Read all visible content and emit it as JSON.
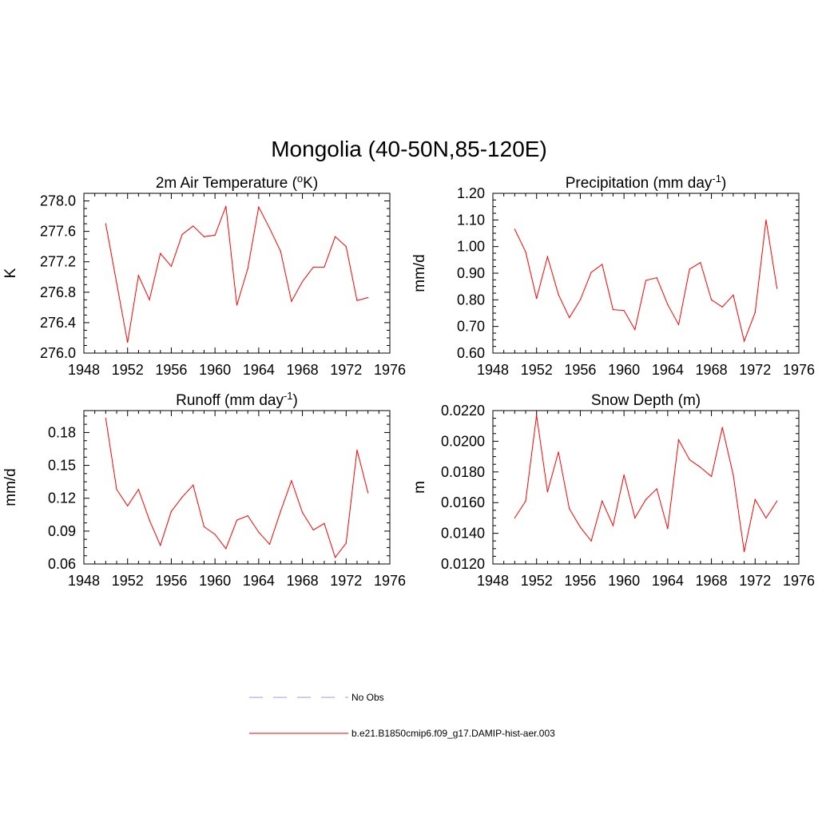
{
  "figure": {
    "title": "Mongolia (40-50N,85-120E)"
  },
  "colors": {
    "model": "#ff0000",
    "obs": "#9999ee",
    "axis": "#000000"
  },
  "legend": {
    "entries": [
      {
        "label": "No Obs",
        "style": "dashed",
        "color": "#9999ee"
      },
      {
        "label": "b.e21.B1850cmip6.f09_g17.DAMIP-hist-aer.003",
        "style": "solid",
        "color": "#ff0000"
      }
    ]
  },
  "chart_data": [
    {
      "type": "line",
      "title_main": "2m Air Temperature (",
      "title_sup": "o",
      "title_tail": "K)",
      "ylabel": "K",
      "xlim": [
        1948,
        1976
      ],
      "ylim": [
        276.0,
        278.1
      ],
      "xticks": [
        1948,
        1952,
        1956,
        1960,
        1964,
        1968,
        1972,
        1976
      ],
      "yticks": [
        276.0,
        276.4,
        276.8,
        277.2,
        277.6,
        278.0
      ],
      "ytick_labels": [
        "276.0",
        "276.4",
        "276.8",
        "277.2",
        "277.6",
        "278.0"
      ],
      "x": [
        1950,
        1951,
        1952,
        1953,
        1954,
        1955,
        1956,
        1957,
        1958,
        1959,
        1960,
        1961,
        1962,
        1963,
        1964,
        1965,
        1966,
        1967,
        1968,
        1969,
        1970,
        1971,
        1972,
        1973,
        1974
      ],
      "series": [
        {
          "name": "b.e21.B1850cmip6.f09_g17.DAMIP-hist-aer.003",
          "values": [
            277.7,
            276.92,
            276.14,
            277.02,
            276.7,
            277.31,
            277.14,
            277.56,
            277.67,
            277.53,
            277.55,
            277.93,
            276.63,
            277.11,
            277.92,
            277.64,
            277.34,
            276.68,
            276.94,
            277.13,
            277.13,
            277.53,
            277.4,
            276.69,
            276.73
          ]
        }
      ]
    },
    {
      "type": "line",
      "title_main": "Precipitation (mm day",
      "title_sup": "-1",
      "title_tail": ")",
      "ylabel": "mm/d",
      "xlim": [
        1948,
        1976
      ],
      "ylim": [
        0.6,
        1.2
      ],
      "xticks": [
        1948,
        1952,
        1956,
        1960,
        1964,
        1968,
        1972,
        1976
      ],
      "yticks": [
        0.6,
        0.7,
        0.8,
        0.9,
        1.0,
        1.1,
        1.2
      ],
      "ytick_labels": [
        "0.60",
        "0.70",
        "0.80",
        "0.90",
        "1.00",
        "1.10",
        "1.20"
      ],
      "x": [
        1950,
        1951,
        1952,
        1953,
        1954,
        1955,
        1956,
        1957,
        1958,
        1959,
        1960,
        1961,
        1962,
        1963,
        1964,
        1965,
        1966,
        1967,
        1968,
        1969,
        1970,
        1971,
        1972,
        1973,
        1974
      ],
      "series": [
        {
          "name": "b.e21.B1850cmip6.f09_g17.DAMIP-hist-aer.003",
          "values": [
            1.065,
            0.98,
            0.805,
            0.962,
            0.82,
            0.733,
            0.8,
            0.903,
            0.933,
            0.763,
            0.76,
            0.688,
            0.873,
            0.883,
            0.782,
            0.707,
            0.915,
            0.94,
            0.8,
            0.773,
            0.818,
            0.645,
            0.752,
            1.1,
            0.843
          ]
        }
      ]
    },
    {
      "type": "line",
      "title_main": "Runoff (mm day",
      "title_sup": "-1",
      "title_tail": ")",
      "ylabel": "mm/d",
      "xlim": [
        1948,
        1976
      ],
      "ylim": [
        0.06,
        0.2
      ],
      "xticks": [
        1948,
        1952,
        1956,
        1960,
        1964,
        1968,
        1972,
        1976
      ],
      "yticks": [
        0.06,
        0.09,
        0.12,
        0.15,
        0.18
      ],
      "ytick_labels": [
        "0.06",
        "0.09",
        "0.12",
        "0.15",
        "0.18"
      ],
      "x": [
        1950,
        1951,
        1952,
        1953,
        1954,
        1955,
        1956,
        1957,
        1958,
        1959,
        1960,
        1961,
        1962,
        1963,
        1964,
        1965,
        1966,
        1967,
        1968,
        1969,
        1970,
        1971,
        1972,
        1973,
        1974
      ],
      "series": [
        {
          "name": "b.e21.B1850cmip6.f09_g17.DAMIP-hist-aer.003",
          "values": [
            0.193,
            0.128,
            0.113,
            0.128,
            0.1,
            0.077,
            0.108,
            0.121,
            0.132,
            0.094,
            0.087,
            0.074,
            0.1,
            0.104,
            0.089,
            0.078,
            0.108,
            0.136,
            0.107,
            0.091,
            0.097,
            0.066,
            0.079,
            0.164,
            0.125
          ]
        }
      ]
    },
    {
      "type": "line",
      "title_main": "Snow Depth (m)",
      "title_sup": "",
      "title_tail": "",
      "ylabel": "m",
      "xlim": [
        1948,
        1976
      ],
      "ylim": [
        0.012,
        0.022
      ],
      "xticks": [
        1948,
        1952,
        1956,
        1960,
        1964,
        1968,
        1972,
        1976
      ],
      "yticks": [
        0.012,
        0.014,
        0.016,
        0.018,
        0.02,
        0.022
      ],
      "ytick_labels": [
        "0.0120",
        "0.0140",
        "0.0160",
        "0.0180",
        "0.0200",
        "0.0220"
      ],
      "x": [
        1950,
        1951,
        1952,
        1953,
        1954,
        1955,
        1956,
        1957,
        1958,
        1959,
        1960,
        1961,
        1962,
        1963,
        1964,
        1965,
        1966,
        1967,
        1968,
        1969,
        1970,
        1971,
        1972,
        1973,
        1974
      ],
      "series": [
        {
          "name": "b.e21.B1850cmip6.f09_g17.DAMIP-hist-aer.003",
          "values": [
            0.015,
            0.0161,
            0.0217,
            0.0167,
            0.0193,
            0.0156,
            0.0144,
            0.0135,
            0.0161,
            0.0145,
            0.0178,
            0.015,
            0.0162,
            0.0169,
            0.0143,
            0.0201,
            0.0188,
            0.0183,
            0.0177,
            0.0209,
            0.0178,
            0.0128,
            0.0162,
            0.015,
            0.0161
          ]
        }
      ]
    }
  ]
}
